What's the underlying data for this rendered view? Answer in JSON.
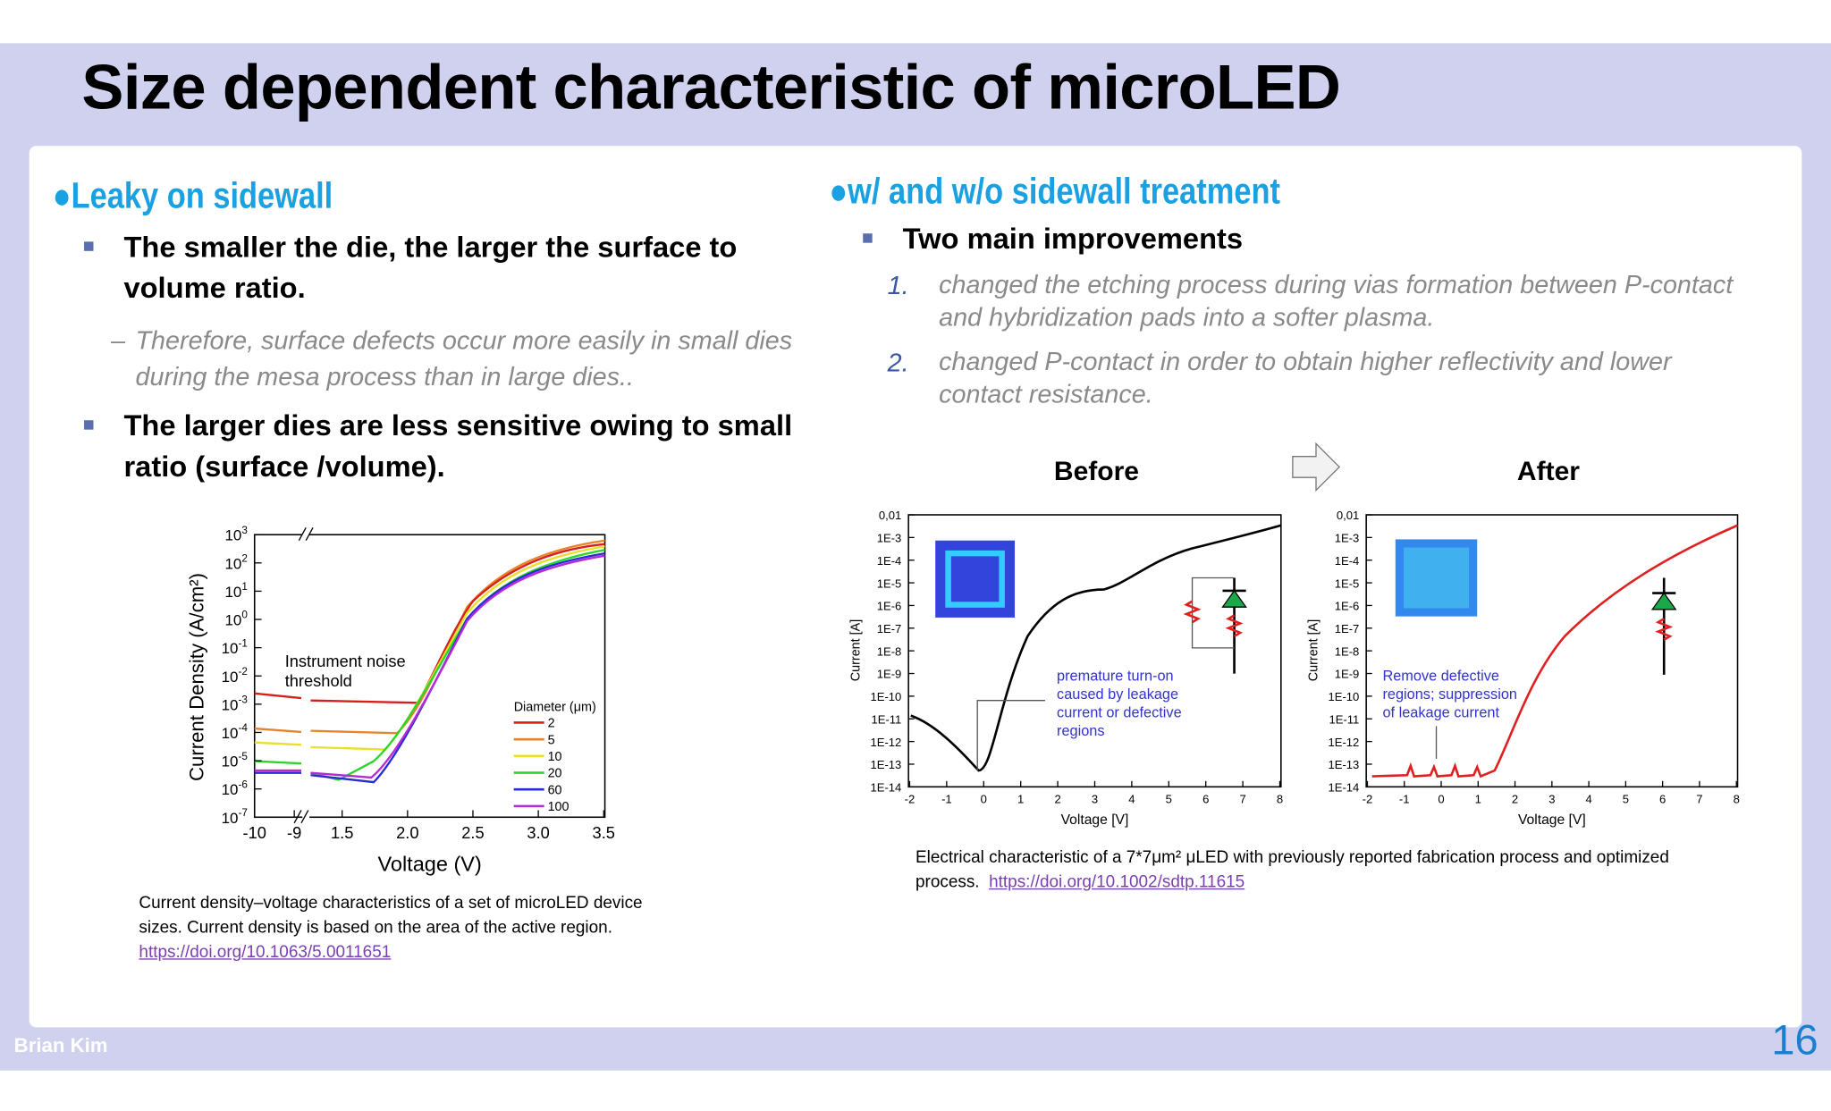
{
  "header": {
    "title": "Size dependent characteristic of microLED"
  },
  "footer": {
    "author": "Brian Kim",
    "page": "16"
  },
  "left": {
    "heading": "●Leaky on sidewall",
    "bullets": [
      {
        "text": "The smaller the die, the larger the surface to volume ratio.",
        "sub": "Therefore, surface defects occur more easily in small dies during the mesa process than in large dies..",
        "dash": "–"
      },
      {
        "text": "The larger dies are less sensitive owing to small ratio (surface /volume)."
      }
    ],
    "figure": {
      "y_label": "Current Density (A/cm²)",
      "x_label": "Voltage (V)",
      "tick_base": "10",
      "ytick_exponents": [
        "3",
        "2",
        "1",
        "0",
        "-1",
        "-2",
        "-3",
        "-4",
        "-5",
        "-6",
        "-7"
      ],
      "xticks": [
        "-10",
        "-9",
        "1.5",
        "2.0",
        "2.5",
        "3.0",
        "3.5"
      ],
      "annotation": [
        "Instrument noise",
        "threshold"
      ],
      "legend_title": "Diameter (μm)",
      "legend": [
        {
          "name": "2",
          "color": "#d62020"
        },
        {
          "name": "5",
          "color": "#e8832a"
        },
        {
          "name": "10",
          "color": "#e8e02a"
        },
        {
          "name": "20",
          "color": "#2ad62a"
        },
        {
          "name": "60",
          "color": "#2a2ad6"
        },
        {
          "name": "100",
          "color": "#b52ad6"
        }
      ],
      "caption": "Current density–voltage characteristics of a set of microLED device sizes. Current density is based on the area of the active region.",
      "link": "https://doi.org/10.1063/5.0011651"
    }
  },
  "right": {
    "heading": "●w/ and w/o sidewall treatment",
    "bullet": "Two main improvements",
    "items": [
      {
        "number": "1.",
        "text": "changed the etching process during vias formation between P-contact and hybridization pads into a softer plasma."
      },
      {
        "number": "2.",
        "text": "changed P-contact in order to obtain higher reflectivity and lower contact resistance."
      }
    ],
    "figure": {
      "before": "Before",
      "after": "After",
      "y_label": "Current [A]",
      "x_label": "Voltage [V]",
      "yticks": [
        "0,01",
        "1E-3",
        "1E-4",
        "1E-5",
        "1E-6",
        "1E-7",
        "1E-8",
        "1E-9",
        "1E-10",
        "1E-11",
        "1E-12",
        "1E-13",
        "1E-14"
      ],
      "xticks": [
        -2,
        -1,
        0,
        1,
        2,
        3,
        4,
        5,
        6,
        7,
        8
      ],
      "annotation_before": [
        "premature turn-on",
        "caused by leakage",
        "current or defective",
        "regions"
      ],
      "annotation_after": [
        "Remove defective",
        "regions; suppression",
        "of leakage current"
      ],
      "caption": "Electrical characteristic of a 7*7μm² μLED with previously reported fabrication process and optimized process.",
      "link": "https://doi.org/10.1002/sdtp.11615"
    }
  }
}
